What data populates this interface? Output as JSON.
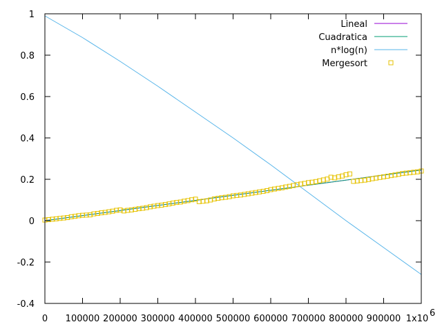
{
  "chart_data": {
    "type": "line",
    "title": "",
    "xlabel": "",
    "ylabel": "",
    "xlim": [
      0,
      1000000
    ],
    "ylim": [
      -0.4,
      1
    ],
    "grid": false,
    "legend_position": "top-right",
    "x_ticks": [
      0,
      100000,
      200000,
      300000,
      400000,
      500000,
      600000,
      700000,
      800000,
      900000,
      1000000
    ],
    "x_tick_labels": [
      "0",
      "100000",
      "200000",
      "300000",
      "400000",
      "500000",
      "600000",
      "700000",
      "800000",
      "900000",
      "1x10"
    ],
    "x_exponent_label": "6",
    "y_ticks": [
      -0.4,
      -0.2,
      0,
      0.2,
      0.4,
      0.6,
      0.8,
      1
    ],
    "y_tick_labels": [
      "-0.4",
      "-0.2",
      "0",
      "0.2",
      "0.4",
      "0.6",
      "0.8",
      "1"
    ],
    "series": [
      {
        "name": "Lineal",
        "style": "line",
        "color": "#9400d3",
        "x": [
          0,
          1000000
        ],
        "y": [
          0,
          0.245
        ]
      },
      {
        "name": "Cuadratica",
        "style": "line",
        "color": "#009e73",
        "x": [
          0,
          1000000
        ],
        "y": [
          0,
          0.245
        ]
      },
      {
        "name": "n*log(n)",
        "style": "line",
        "color": "#56b4e9",
        "x": [
          0,
          100000,
          200000,
          300000,
          400000,
          500000,
          600000,
          700000,
          800000,
          900000,
          1000000
        ],
        "y": [
          0.99,
          0.885,
          0.77,
          0.65,
          0.525,
          0.4,
          0.27,
          0.135,
          0.0,
          -0.13,
          -0.26
        ]
      },
      {
        "name": "Mergesort",
        "style": "points",
        "marker": "square",
        "color": "#e6c200",
        "x": [
          0,
          10000,
          20000,
          30000,
          40000,
          50000,
          60000,
          70000,
          80000,
          90000,
          100000,
          110000,
          120000,
          130000,
          140000,
          150000,
          160000,
          170000,
          180000,
          190000,
          200000,
          210000,
          220000,
          230000,
          240000,
          250000,
          260000,
          270000,
          280000,
          290000,
          300000,
          310000,
          320000,
          330000,
          340000,
          350000,
          360000,
          370000,
          380000,
          390000,
          400000,
          410000,
          420000,
          430000,
          440000,
          450000,
          460000,
          470000,
          480000,
          490000,
          500000,
          510000,
          520000,
          530000,
          540000,
          550000,
          560000,
          570000,
          580000,
          590000,
          600000,
          610000,
          620000,
          630000,
          640000,
          650000,
          660000,
          670000,
          680000,
          690000,
          700000,
          710000,
          720000,
          730000,
          740000,
          750000,
          760000,
          770000,
          780000,
          790000,
          800000,
          810000,
          820000,
          830000,
          840000,
          850000,
          860000,
          870000,
          880000,
          890000,
          900000,
          910000,
          920000,
          930000,
          940000,
          950000,
          960000,
          970000,
          980000,
          990000,
          1000000
        ],
        "y": [
          0.003,
          0.005,
          0.007,
          0.009,
          0.011,
          0.013,
          0.015,
          0.019,
          0.021,
          0.024,
          0.026,
          0.027,
          0.028,
          0.033,
          0.035,
          0.038,
          0.04,
          0.043,
          0.046,
          0.05,
          0.052,
          0.047,
          0.05,
          0.052,
          0.055,
          0.058,
          0.06,
          0.063,
          0.067,
          0.07,
          0.073,
          0.075,
          0.078,
          0.081,
          0.085,
          0.088,
          0.09,
          0.094,
          0.097,
          0.101,
          0.104,
          0.092,
          0.094,
          0.096,
          0.1,
          0.105,
          0.108,
          0.111,
          0.113,
          0.116,
          0.12,
          0.122,
          0.124,
          0.127,
          0.13,
          0.133,
          0.136,
          0.139,
          0.142,
          0.145,
          0.15,
          0.153,
          0.156,
          0.159,
          0.163,
          0.166,
          0.17,
          0.174,
          0.177,
          0.18,
          0.184,
          0.186,
          0.189,
          0.193,
          0.197,
          0.201,
          0.21,
          0.207,
          0.212,
          0.216,
          0.222,
          0.226,
          0.19,
          0.192,
          0.194,
          0.196,
          0.199,
          0.203,
          0.206,
          0.209,
          0.212,
          0.215,
          0.218,
          0.221,
          0.224,
          0.228,
          0.23,
          0.232,
          0.234,
          0.236,
          0.24
        ]
      }
    ]
  }
}
